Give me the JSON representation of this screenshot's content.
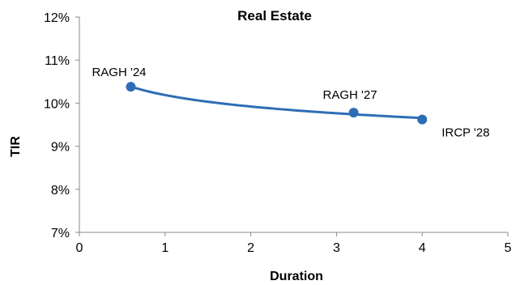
{
  "chart_data": {
    "type": "scatter",
    "title": "Real Estate",
    "xlabel": "Duration",
    "ylabel": "TIR",
    "xlim": [
      0,
      5
    ],
    "ylim": [
      7,
      12
    ],
    "x_ticks": [
      0,
      1,
      2,
      3,
      4,
      5
    ],
    "x_tick_labels": [
      "0",
      "1",
      "2",
      "3",
      "4",
      "5"
    ],
    "y_ticks": [
      7,
      8,
      9,
      10,
      11,
      12
    ],
    "y_tick_labels": [
      "7%",
      "8%",
      "9%",
      "10%",
      "11%",
      "12%"
    ],
    "grid": false,
    "legend": "none",
    "trendline": "logarithmic",
    "series": [
      {
        "color": "#2e6db4",
        "points": [
          {
            "label": "RAGH '24",
            "x": 0.6,
            "y": 10.38
          },
          {
            "label": "RAGH '27",
            "x": 3.2,
            "y": 9.78
          },
          {
            "label": "IRCP '28",
            "x": 4.0,
            "y": 9.62
          }
        ]
      }
    ]
  }
}
